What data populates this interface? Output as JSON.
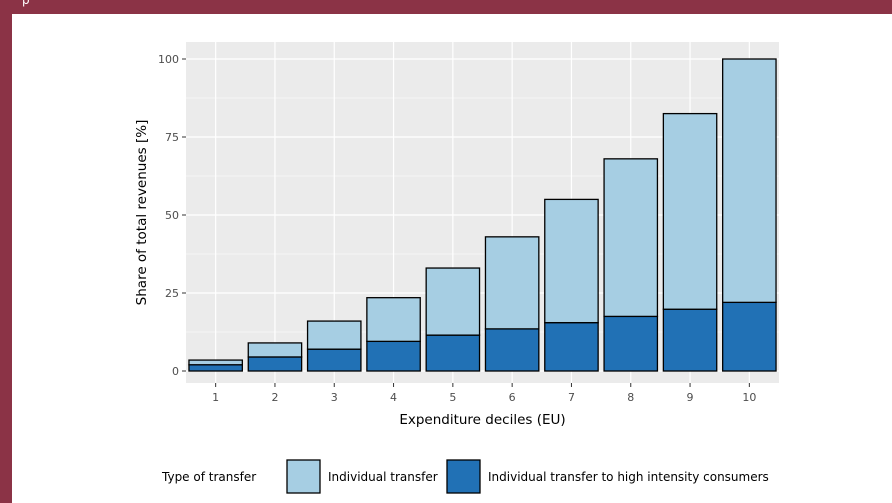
{
  "header": {
    "fragment": "p"
  },
  "chart_data": {
    "type": "bar",
    "stacked": true,
    "categories": [
      "1",
      "2",
      "3",
      "4",
      "5",
      "6",
      "7",
      "8",
      "9",
      "10"
    ],
    "series": [
      {
        "name": "Individual transfer to high intensity consumers",
        "color": "#2171b5",
        "values": [
          2,
          4.5,
          7,
          9.5,
          11.5,
          13.5,
          15.5,
          17.5,
          19.8,
          22
        ]
      },
      {
        "name": "Individual transfer",
        "color": "#a6cee3",
        "values": [
          1.5,
          4.5,
          9,
          14,
          21.5,
          29.5,
          39.5,
          50.5,
          62.7,
          78
        ]
      }
    ],
    "totals": [
      3.5,
      9,
      16,
      23.5,
      33,
      43,
      55,
      68,
      82.5,
      100
    ],
    "xlabel": "Expenditure deciles (EU)",
    "ylabel": "Share of total revenues [%]",
    "ylim": [
      0,
      104
    ],
    "yticks": [
      0,
      25,
      50,
      75,
      100
    ],
    "grid": true,
    "legend": {
      "title": "Type of transfer",
      "position": "bottom"
    },
    "panel_color": "#ebebeb"
  }
}
